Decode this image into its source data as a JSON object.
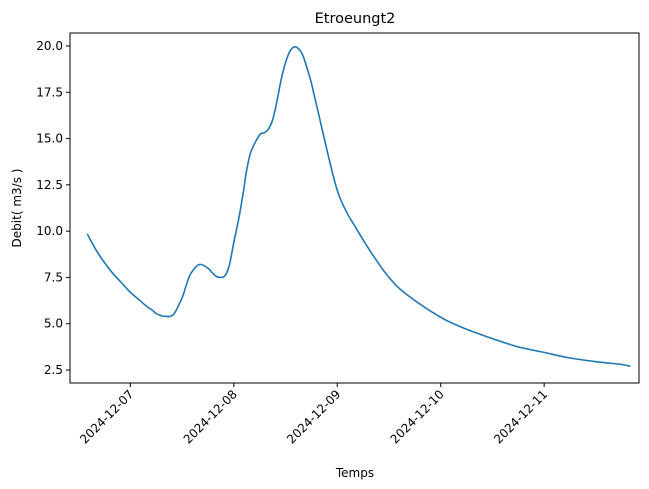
{
  "chart_data": {
    "type": "line",
    "title": "Etroeungt2",
    "xlabel": "Temps",
    "ylabel": "Debit( m3/s )",
    "x_ticks": [
      "2024-12-07",
      "2024-12-08",
      "2024-12-09",
      "2024-12-10",
      "2024-12-11"
    ],
    "y_ticks": [
      "2.5",
      "5.0",
      "7.5",
      "10.0",
      "12.5",
      "15.0",
      "17.5",
      "20.0"
    ],
    "xlim": [
      "2024-12-06 10:00",
      "2024-12-11 22:00"
    ],
    "ylim": [
      1.8,
      20.7
    ],
    "grid": false,
    "legend": "none",
    "color": "#1f77b4",
    "series": [
      {
        "x": [
          "2024-12-06 14:00",
          "2024-12-06 16:00",
          "2024-12-06 18:00",
          "2024-12-06 20:00",
          "2024-12-06 22:00",
          "2024-12-07 00:00",
          "2024-12-07 02:00",
          "2024-12-07 04:00",
          "2024-12-07 05:00",
          "2024-12-07 06:00",
          "2024-12-07 07:00",
          "2024-12-07 08:00",
          "2024-12-07 10:00",
          "2024-12-07 12:00",
          "2024-12-07 13:00",
          "2024-12-07 14:00",
          "2024-12-07 16:00",
          "2024-12-07 18:00",
          "2024-12-07 19:00",
          "2024-12-07 20:00",
          "2024-12-07 21:00",
          "2024-12-07 22:00",
          "2024-12-07 23:00",
          "2024-12-08 00:00",
          "2024-12-08 01:00",
          "2024-12-08 02:00",
          "2024-12-08 03:00",
          "2024-12-08 04:00",
          "2024-12-08 06:00",
          "2024-12-08 07:00",
          "2024-12-08 08:00",
          "2024-12-08 09:00",
          "2024-12-08 10:00",
          "2024-12-08 11:00",
          "2024-12-08 12:00",
          "2024-12-08 13:00",
          "2024-12-08 14:00",
          "2024-12-08 15:00",
          "2024-12-08 16:00",
          "2024-12-08 17:00",
          "2024-12-08 18:00",
          "2024-12-08 20:00",
          "2024-12-08 22:00",
          "2024-12-09 00:00",
          "2024-12-09 02:00",
          "2024-12-09 04:00",
          "2024-12-09 08:00",
          "2024-12-09 12:00",
          "2024-12-09 16:00",
          "2024-12-10 00:00",
          "2024-12-10 06:00",
          "2024-12-10 12:00",
          "2024-12-10 18:00",
          "2024-12-11 00:00",
          "2024-12-11 06:00",
          "2024-12-11 12:00",
          "2024-12-11 18:00",
          "2024-12-11 20:00"
        ],
        "values": [
          9.85,
          9.0,
          8.3,
          7.7,
          7.2,
          6.7,
          6.3,
          5.9,
          5.75,
          5.55,
          5.45,
          5.4,
          5.5,
          6.4,
          7.1,
          7.7,
          8.2,
          8.0,
          7.75,
          7.55,
          7.5,
          7.6,
          8.2,
          9.4,
          10.5,
          11.8,
          13.3,
          14.3,
          15.2,
          15.3,
          15.5,
          16.0,
          17.0,
          18.2,
          19.1,
          19.7,
          19.95,
          19.85,
          19.5,
          18.8,
          18.0,
          16.0,
          14.0,
          12.2,
          11.1,
          10.3,
          8.8,
          7.5,
          6.6,
          5.35,
          4.7,
          4.2,
          3.75,
          3.45,
          3.15,
          2.95,
          2.8,
          2.7
        ]
      }
    ]
  }
}
